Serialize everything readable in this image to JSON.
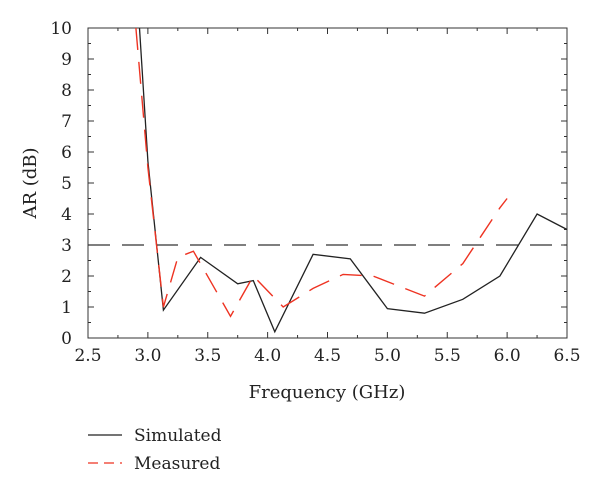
{
  "chart_data": {
    "type": "line",
    "xlabel": "Frequency (GHz)",
    "ylabel": "AR (dB)",
    "xlim": [
      2.5,
      6.5
    ],
    "ylim": [
      0,
      10
    ],
    "x_ticks": [
      "2.5",
      "3.0",
      "3.5",
      "4.0",
      "4.5",
      "5.0",
      "5.5",
      "6.0",
      "6.5"
    ],
    "y_ticks": [
      "0",
      "1",
      "2",
      "3",
      "4",
      "5",
      "6",
      "7",
      "8",
      "9",
      "10"
    ],
    "grid": false,
    "legend_position": "bottom-left",
    "reference_line": {
      "y": 3,
      "style": "dashed",
      "color": "#333333"
    },
    "series": [
      {
        "name": "Simulated",
        "color": "#222222",
        "style": "solid",
        "x": [
          2.93,
          3.0,
          3.13,
          3.44,
          3.75,
          3.88,
          4.06,
          4.38,
          4.69,
          5.0,
          5.31,
          5.63,
          5.94,
          6.25,
          6.5
        ],
        "y": [
          10.0,
          5.7,
          0.9,
          2.6,
          1.75,
          1.85,
          0.2,
          2.7,
          2.55,
          0.95,
          0.8,
          1.25,
          2.0,
          4.0,
          3.5
        ]
      },
      {
        "name": "Measured",
        "color": "#ee3322",
        "style": "dashed",
        "x": [
          2.9,
          3.0,
          3.13,
          3.25,
          3.38,
          3.69,
          3.88,
          4.13,
          4.38,
          4.63,
          4.88,
          5.31,
          5.63,
          5.94,
          6.0
        ],
        "y": [
          10.0,
          5.5,
          1.0,
          2.6,
          2.8,
          0.7,
          2.0,
          1.0,
          1.6,
          2.05,
          2.0,
          1.35,
          2.4,
          4.2,
          4.5
        ]
      }
    ]
  }
}
